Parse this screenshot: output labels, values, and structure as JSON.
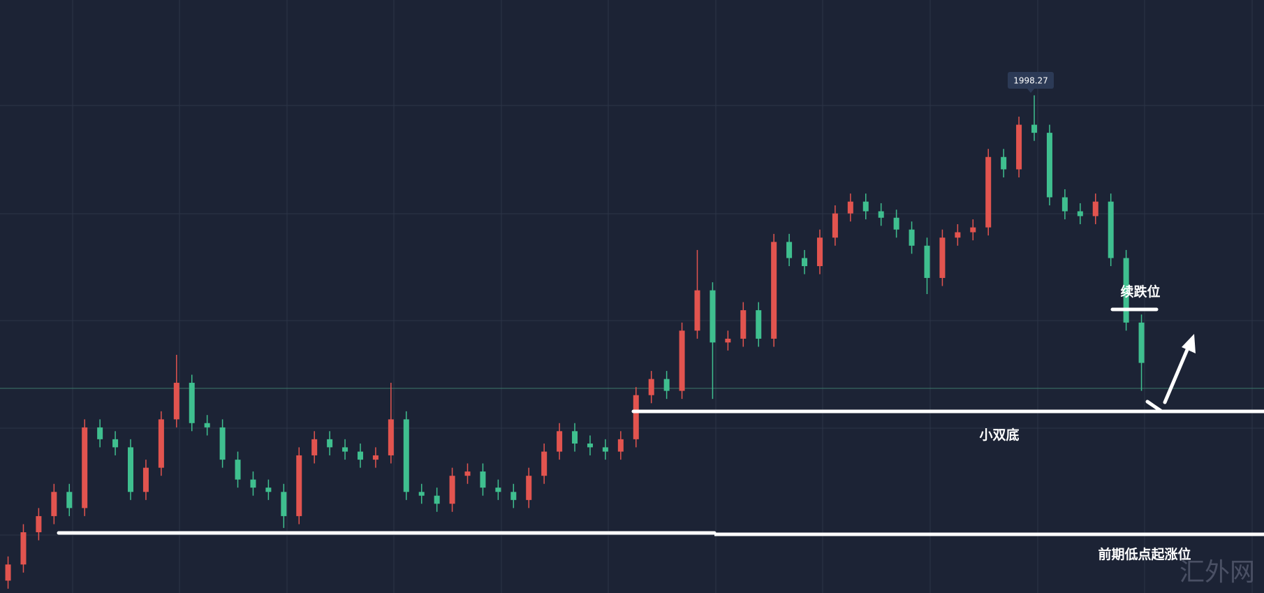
{
  "chart_data": {
    "type": "candlestick",
    "up_color": "#e2544f",
    "down_color": "#3fbf8f",
    "ylim": [
      1905.7,
      2016.0
    ],
    "open": [
      1908.0,
      1911.0,
      1917.0,
      1920.0,
      1924.5,
      1921.5,
      1936.5,
      1934.3,
      1932.8,
      1924.5,
      1929.0,
      1938.0,
      1944.8,
      1937.3,
      1936.5,
      1930.5,
      1926.8,
      1925.3,
      1924.5,
      1920.0,
      1931.3,
      1934.3,
      1932.8,
      1932.0,
      1930.5,
      1931.3,
      1938.0,
      1924.5,
      1923.8,
      1922.3,
      1927.5,
      1928.3,
      1925.3,
      1924.5,
      1923.0,
      1927.5,
      1932.0,
      1935.8,
      1933.5,
      1932.8,
      1932.0,
      1934.3,
      1942.5,
      1945.5,
      1943.3,
      1954.5,
      1962.0,
      1952.3,
      1953.0,
      1958.3,
      1953.0,
      1971.0,
      1968.0,
      1966.5,
      1971.8,
      1976.3,
      1978.5,
      1976.7,
      1975.5,
      1973.3,
      1970.3,
      1964.3,
      1971.8,
      1972.8,
      1973.7,
      1986.8,
      1984.5,
      1992.8,
      1991.3,
      1979.3,
      1976.7,
      1975.8,
      1978.5,
      1968.0,
      1956.0
    ],
    "high": [
      1912.5,
      1918.5,
      1921.5,
      1926.0,
      1926.0,
      1938.0,
      1938.0,
      1935.8,
      1934.3,
      1930.5,
      1939.5,
      1950.0,
      1946.3,
      1938.8,
      1938.0,
      1932.0,
      1928.3,
      1926.8,
      1926.0,
      1932.8,
      1935.8,
      1935.8,
      1934.3,
      1933.5,
      1932.8,
      1944.8,
      1939.5,
      1926.0,
      1925.3,
      1929.0,
      1929.8,
      1929.8,
      1926.8,
      1926.0,
      1929.0,
      1933.5,
      1937.3,
      1937.3,
      1935.0,
      1934.3,
      1935.8,
      1944.0,
      1947.0,
      1947.0,
      1956.0,
      1969.5,
      1963.5,
      1954.5,
      1959.8,
      1959.8,
      1972.5,
      1972.5,
      1969.5,
      1973.3,
      1977.8,
      1980.0,
      1980.0,
      1978.2,
      1977.0,
      1974.8,
      1971.8,
      1973.3,
      1974.3,
      1975.2,
      1988.3,
      1988.3,
      1994.3,
      1998.27,
      1992.8,
      1980.8,
      1978.2,
      1980.0,
      1980.0,
      1969.5,
      1957.5
    ],
    "low": [
      1906.5,
      1909.5,
      1915.5,
      1918.5,
      1920.0,
      1920.0,
      1932.8,
      1931.3,
      1923.0,
      1923.0,
      1927.5,
      1936.5,
      1935.8,
      1935.0,
      1929.0,
      1925.3,
      1923.8,
      1923.0,
      1917.8,
      1918.5,
      1929.8,
      1931.3,
      1930.5,
      1929.0,
      1929.0,
      1929.8,
      1923.0,
      1922.3,
      1920.8,
      1920.8,
      1926.0,
      1923.8,
      1923.0,
      1921.5,
      1921.5,
      1926.0,
      1930.5,
      1932.0,
      1931.3,
      1930.5,
      1930.5,
      1932.8,
      1941.0,
      1941.8,
      1941.8,
      1953.0,
      1941.8,
      1950.8,
      1951.5,
      1951.5,
      1951.5,
      1966.5,
      1965.0,
      1965.0,
      1970.3,
      1974.8,
      1975.2,
      1974.0,
      1971.8,
      1968.8,
      1961.3,
      1962.8,
      1970.3,
      1971.3,
      1972.2,
      1983.0,
      1983.0,
      1989.8,
      1977.8,
      1975.2,
      1974.3,
      1974.3,
      1966.5,
      1954.5,
      1943.3
    ],
    "close": [
      1911.0,
      1917.0,
      1920.0,
      1924.5,
      1921.5,
      1936.5,
      1934.3,
      1932.8,
      1924.5,
      1929.0,
      1938.0,
      1944.8,
      1937.3,
      1936.5,
      1930.5,
      1926.8,
      1925.3,
      1924.5,
      1920.0,
      1931.3,
      1934.3,
      1932.8,
      1932.0,
      1930.5,
      1931.3,
      1938.0,
      1924.5,
      1923.8,
      1922.3,
      1927.5,
      1928.3,
      1925.3,
      1924.5,
      1923.0,
      1927.5,
      1932.0,
      1935.8,
      1933.5,
      1932.8,
      1932.0,
      1934.3,
      1942.5,
      1945.5,
      1943.3,
      1954.5,
      1962.0,
      1952.3,
      1953.0,
      1958.3,
      1953.0,
      1971.0,
      1968.0,
      1966.5,
      1971.8,
      1976.3,
      1978.5,
      1976.7,
      1975.5,
      1973.3,
      1970.3,
      1964.3,
      1971.8,
      1972.8,
      1973.7,
      1986.8,
      1984.5,
      1992.8,
      1991.3,
      1979.3,
      1976.7,
      1975.8,
      1978.5,
      1968.0,
      1956.0,
      1948.5
    ],
    "annotations": [
      "续跌位",
      "小双底",
      "前期低点起涨位"
    ],
    "watermark": "汇外网"
  }
}
